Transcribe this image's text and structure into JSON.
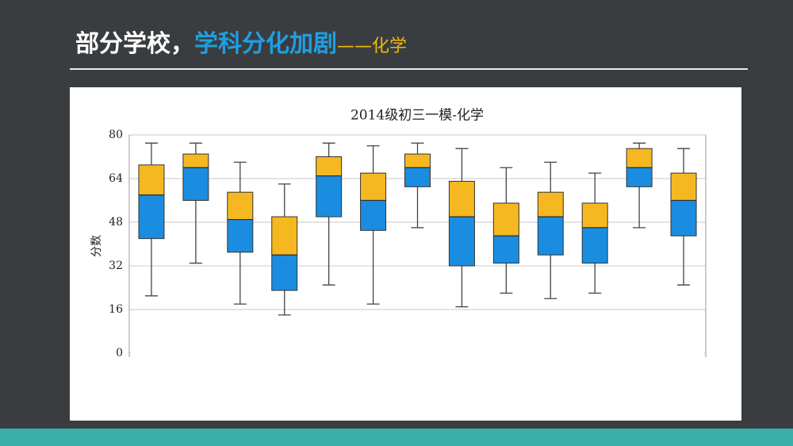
{
  "header": {
    "title_main": "部分学校，",
    "title_highlight": "学科分化加剧",
    "title_subject": "——化学"
  },
  "chart_data": {
    "type": "box",
    "title": "2014级初三一模-化学",
    "y_label": "分数",
    "ylim": [
      0,
      80
    ],
    "yticks": [
      0,
      16,
      32,
      48,
      64,
      80
    ],
    "grid": true,
    "lower_color": "#1a8de0",
    "upper_color": "#f5b820",
    "boxes": [
      {
        "min": 21,
        "q1": 42,
        "median": 58,
        "q3": 69,
        "max": 77
      },
      {
        "min": 33,
        "q1": 56,
        "median": 68,
        "q3": 73,
        "max": 77
      },
      {
        "min": 18,
        "q1": 37,
        "median": 49,
        "q3": 59,
        "max": 70
      },
      {
        "min": 14,
        "q1": 23,
        "median": 36,
        "q3": 50,
        "max": 62
      },
      {
        "min": 25,
        "q1": 50,
        "median": 65,
        "q3": 72,
        "max": 77
      },
      {
        "min": 18,
        "q1": 45,
        "median": 56,
        "q3": 66,
        "max": 76
      },
      {
        "min": 46,
        "q1": 61,
        "median": 68,
        "q3": 73,
        "max": 77
      },
      {
        "min": 17,
        "q1": 32,
        "median": 50,
        "q3": 63,
        "max": 75
      },
      {
        "min": 22,
        "q1": 33,
        "median": 43,
        "q3": 55,
        "max": 68
      },
      {
        "min": 20,
        "q1": 36,
        "median": 50,
        "q3": 59,
        "max": 70
      },
      {
        "min": 22,
        "q1": 33,
        "median": 46,
        "q3": 55,
        "max": 66
      },
      {
        "min": 46,
        "q1": 61,
        "median": 68,
        "q3": 75,
        "max": 77
      },
      {
        "min": 25,
        "q1": 43,
        "median": 56,
        "q3": 66,
        "max": 75
      }
    ]
  }
}
